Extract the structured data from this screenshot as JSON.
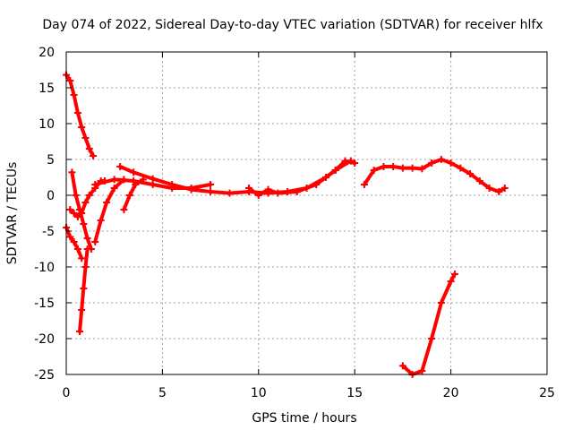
{
  "chart_data": {
    "type": "scatter",
    "title": "Day 074 of 2022, Sidereal Day-to-day VTEC variation (SDTVAR) for receiver hlfx",
    "xlabel": "GPS time / hours",
    "ylabel": "SDTVAR / TECUs",
    "xlim": [
      0,
      25
    ],
    "ylim": [
      -25,
      20
    ],
    "xticks": [
      0,
      5,
      10,
      15,
      20,
      25
    ],
    "yticks": [
      -25,
      -20,
      -15,
      -10,
      -5,
      0,
      5,
      10,
      15,
      20
    ],
    "grid": true,
    "marker": "plus",
    "color": "#ff0000",
    "series": [
      {
        "name": "track-1",
        "x": [
          0.0,
          0.2,
          0.4,
          0.6,
          0.8,
          1.0,
          1.2,
          1.4
        ],
        "y": [
          16.8,
          16.0,
          14.0,
          11.5,
          9.5,
          8.0,
          6.5,
          5.5
        ]
      },
      {
        "name": "track-2",
        "x": [
          0.0,
          0.2,
          0.4,
          0.6,
          0.8
        ],
        "y": [
          -4.5,
          -5.8,
          -6.5,
          -7.5,
          -8.8
        ]
      },
      {
        "name": "track-3",
        "x": [
          0.2,
          0.4,
          0.6,
          0.8,
          1.0,
          1.2,
          1.5,
          1.8,
          2.0
        ],
        "y": [
          -2.0,
          -2.5,
          -3.0,
          -2.5,
          -1.0,
          0.0,
          1.0,
          2.0,
          2.0
        ]
      },
      {
        "name": "track-4",
        "x": [
          0.3,
          0.5,
          0.7,
          0.9,
          1.1,
          1.3
        ],
        "y": [
          3.2,
          0.0,
          -2.0,
          -4.0,
          -6.0,
          -7.5
        ]
      },
      {
        "name": "track-5",
        "x": [
          0.7,
          0.8,
          0.9,
          1.0,
          1.1
        ],
        "y": [
          -19.0,
          -16.0,
          -13.0,
          -10.0,
          -7.5
        ]
      },
      {
        "name": "track-6",
        "x": [
          1.5,
          1.8,
          2.1,
          2.5,
          3.0
        ],
        "y": [
          -6.5,
          -3.5,
          -1.0,
          1.0,
          2.2
        ]
      },
      {
        "name": "track-7",
        "x": [
          3.0,
          3.3,
          3.6,
          4.0
        ],
        "y": [
          -2.0,
          0.0,
          1.5,
          2.2
        ]
      },
      {
        "name": "track-8",
        "x": [
          1.5,
          2.5,
          3.5,
          4.5,
          5.5,
          6.5,
          7.5
        ],
        "y": [
          1.5,
          2.2,
          2.0,
          1.5,
          1.0,
          1.0,
          1.5
        ]
      },
      {
        "name": "track-9",
        "x": [
          2.8,
          3.5,
          4.5,
          5.5,
          6.5,
          7.5,
          8.5,
          9.5,
          10.5,
          11.5,
          12.5,
          13.5,
          14.0,
          14.5,
          15.0
        ],
        "y": [
          4.0,
          3.2,
          2.3,
          1.5,
          0.8,
          0.5,
          0.3,
          0.5,
          0.3,
          0.5,
          1.0,
          2.5,
          3.5,
          4.8,
          4.5
        ]
      },
      {
        "name": "track-10",
        "x": [
          9.5,
          10.0,
          10.5,
          11.0,
          12.0,
          13.0,
          14.0,
          14.8
        ],
        "y": [
          1.0,
          0.0,
          0.8,
          0.3,
          0.5,
          1.5,
          3.5,
          4.8
        ]
      },
      {
        "name": "track-11",
        "x": [
          15.5,
          16.0,
          16.5,
          17.0,
          17.5,
          18.0,
          18.5,
          19.0,
          19.5,
          20.0,
          20.5,
          21.0,
          21.5,
          22.0,
          22.5,
          22.8
        ],
        "y": [
          1.5,
          3.5,
          4.0,
          4.0,
          3.8,
          3.8,
          3.7,
          4.5,
          5.0,
          4.5,
          3.8,
          3.0,
          2.0,
          1.0,
          0.5,
          1.0
        ]
      },
      {
        "name": "track-12",
        "x": [
          17.5,
          18.0,
          18.5,
          19.0,
          19.5,
          20.0,
          20.2
        ],
        "y": [
          -23.8,
          -25.0,
          -24.5,
          -20.0,
          -15.0,
          -12.0,
          -11.0
        ]
      }
    ]
  }
}
